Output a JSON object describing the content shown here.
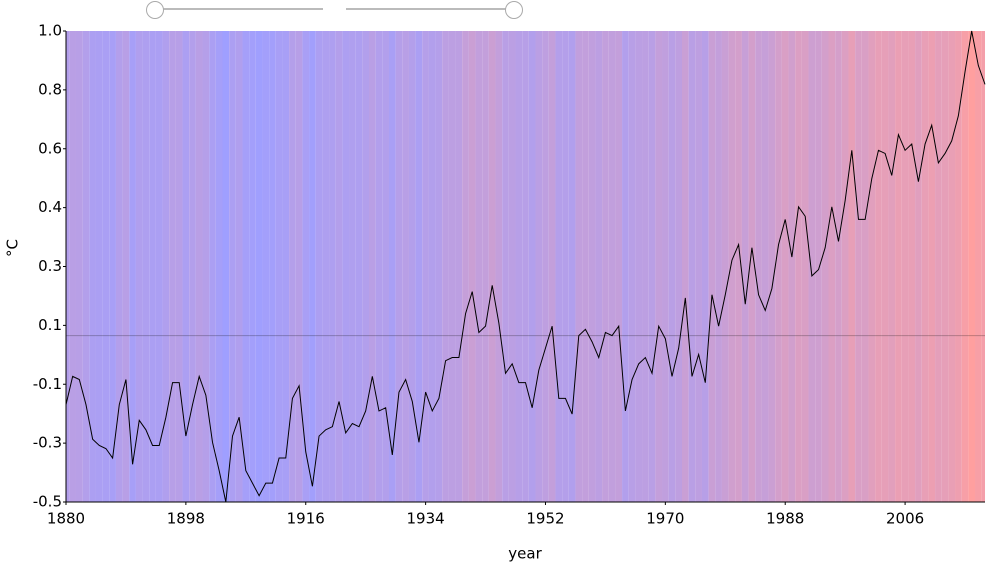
{
  "chart_data": {
    "type": "line",
    "xlabel": "year",
    "ylabel": "°C",
    "x": [
      1880,
      1881,
      1882,
      1883,
      1884,
      1885,
      1886,
      1887,
      1888,
      1889,
      1890,
      1891,
      1892,
      1893,
      1894,
      1895,
      1896,
      1897,
      1898,
      1899,
      1900,
      1901,
      1902,
      1903,
      1904,
      1905,
      1906,
      1907,
      1908,
      1909,
      1910,
      1911,
      1912,
      1913,
      1914,
      1915,
      1916,
      1917,
      1918,
      1919,
      1920,
      1921,
      1922,
      1923,
      1924,
      1925,
      1926,
      1927,
      1928,
      1929,
      1930,
      1931,
      1932,
      1933,
      1934,
      1935,
      1936,
      1937,
      1938,
      1939,
      1940,
      1941,
      1942,
      1943,
      1944,
      1945,
      1946,
      1947,
      1948,
      1949,
      1950,
      1951,
      1952,
      1953,
      1954,
      1955,
      1956,
      1957,
      1958,
      1959,
      1960,
      1961,
      1962,
      1963,
      1964,
      1965,
      1966,
      1967,
      1968,
      1969,
      1970,
      1971,
      1972,
      1973,
      1974,
      1975,
      1976,
      1977,
      1978,
      1979,
      1980,
      1981,
      1982,
      1983,
      1984,
      1985,
      1986,
      1987,
      1988,
      1989,
      1990,
      1991,
      1992,
      1993,
      1994,
      1995,
      1996,
      1997,
      1998,
      1999,
      2000,
      2001,
      2002,
      2003,
      2004,
      2005,
      2006,
      2007,
      2008,
      2009,
      2010,
      2011,
      2012,
      2013,
      2014,
      2015,
      2016,
      2017,
      2018
    ],
    "values": [
      -0.19,
      -0.1,
      -0.11,
      -0.19,
      -0.3,
      -0.32,
      -0.33,
      -0.36,
      -0.19,
      -0.11,
      -0.38,
      -0.24,
      -0.27,
      -0.32,
      -0.32,
      -0.23,
      -0.12,
      -0.12,
      -0.29,
      -0.19,
      -0.1,
      -0.16,
      -0.31,
      -0.4,
      -0.5,
      -0.29,
      -0.23,
      -0.4,
      -0.44,
      -0.48,
      -0.44,
      -0.44,
      -0.36,
      -0.36,
      -0.17,
      -0.13,
      -0.34,
      -0.45,
      -0.29,
      -0.27,
      -0.26,
      -0.18,
      -0.28,
      -0.25,
      -0.26,
      -0.21,
      -0.1,
      -0.21,
      -0.2,
      -0.35,
      -0.15,
      -0.11,
      -0.18,
      -0.31,
      -0.15,
      -0.21,
      -0.17,
      -0.05,
      -0.04,
      -0.04,
      0.1,
      0.17,
      0.04,
      0.06,
      0.19,
      0.07,
      -0.09,
      -0.06,
      -0.12,
      -0.12,
      -0.2,
      -0.08,
      -0.01,
      0.06,
      -0.17,
      -0.17,
      -0.22,
      0.03,
      0.05,
      0.01,
      -0.04,
      0.04,
      0.03,
      0.06,
      -0.21,
      -0.11,
      -0.06,
      -0.04,
      -0.09,
      0.06,
      0.02,
      -0.1,
      -0.01,
      0.15,
      -0.1,
      -0.03,
      -0.12,
      0.16,
      0.06,
      0.16,
      0.27,
      0.32,
      0.13,
      0.31,
      0.16,
      0.11,
      0.18,
      0.32,
      0.4,
      0.28,
      0.44,
      0.41,
      0.22,
      0.24,
      0.31,
      0.44,
      0.33,
      0.46,
      0.62,
      0.4,
      0.4,
      0.53,
      0.62,
      0.61,
      0.54,
      0.67,
      0.62,
      0.64,
      0.52,
      0.64,
      0.7,
      0.58,
      0.61,
      0.65,
      0.73,
      0.87,
      1.0,
      0.89,
      0.83
    ],
    "color": "#000000",
    "stripe_colors": {
      "low": "#9f9fff",
      "high": "#ff9f9f"
    },
    "reference_line": 0.03,
    "xlim": [
      1880,
      2018
    ],
    "xticks": [
      1880,
      1898,
      1916,
      1934,
      1952,
      1970,
      1988,
      2006
    ],
    "ylim": [
      -0.5,
      1.0
    ],
    "yticks": [
      -0.5,
      {
        "value": -0.3125,
        "label": "-0.3"
      },
      {
        "value": -0.125,
        "label": "-0.1"
      },
      {
        "value": 0.0625,
        "label": "0.1"
      },
      {
        "value": 0.25,
        "label": "0.3"
      },
      {
        "value": 0.4375,
        "label": "0.4"
      },
      {
        "value": 0.625,
        "label": "0.6"
      },
      {
        "value": 0.8125,
        "label": "0.8"
      },
      {
        "value": 1.0,
        "label": "1.0"
      }
    ]
  }
}
